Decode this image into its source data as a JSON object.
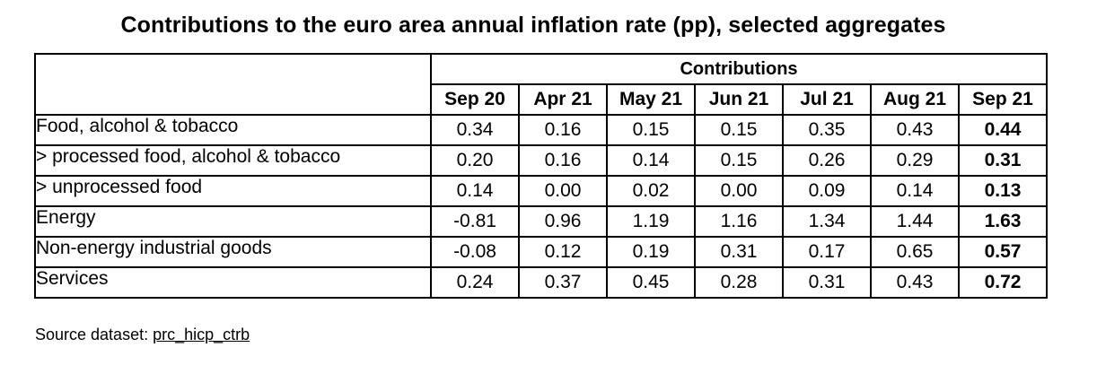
{
  "title": "Contributions to the euro area annual inflation rate (pp), selected aggregates",
  "chart_data": {
    "type": "table",
    "title": "Contributions to the euro area annual inflation rate (pp), selected aggregates",
    "group_header": "Contributions",
    "columns": [
      "Sep 20",
      "Apr 21",
      "May 21",
      "Jun 21",
      "Jul 21",
      "Aug 21",
      "Sep 21"
    ],
    "highlighted_column": "Sep 21",
    "rows": [
      {
        "label": "Food, alcohol & tobacco",
        "values": [
          "0.34",
          "0.16",
          "0.15",
          "0.15",
          "0.35",
          "0.43",
          "0.44"
        ]
      },
      {
        "label": "> processed food, alcohol & tobacco",
        "values": [
          "0.20",
          "0.16",
          "0.14",
          "0.15",
          "0.26",
          "0.29",
          "0.31"
        ]
      },
      {
        "label": "> unprocessed food",
        "values": [
          "0.14",
          "0.00",
          "0.02",
          "0.00",
          "0.09",
          "0.14",
          "0.13"
        ]
      },
      {
        "label": "Energy",
        "values": [
          "-0.81",
          "0.96",
          "1.19",
          "1.16",
          "1.34",
          "1.44",
          "1.63"
        ]
      },
      {
        "label": "Non-energy industrial goods",
        "values": [
          "-0.08",
          "0.12",
          "0.19",
          "0.31",
          "0.17",
          "0.65",
          "0.57"
        ]
      },
      {
        "label": "Services",
        "values": [
          "0.24",
          "0.37",
          "0.45",
          "0.28",
          "0.31",
          "0.43",
          "0.72"
        ]
      }
    ]
  },
  "source": {
    "prefix": "Source dataset: ",
    "dataset": "prc_hicp_ctrb"
  }
}
